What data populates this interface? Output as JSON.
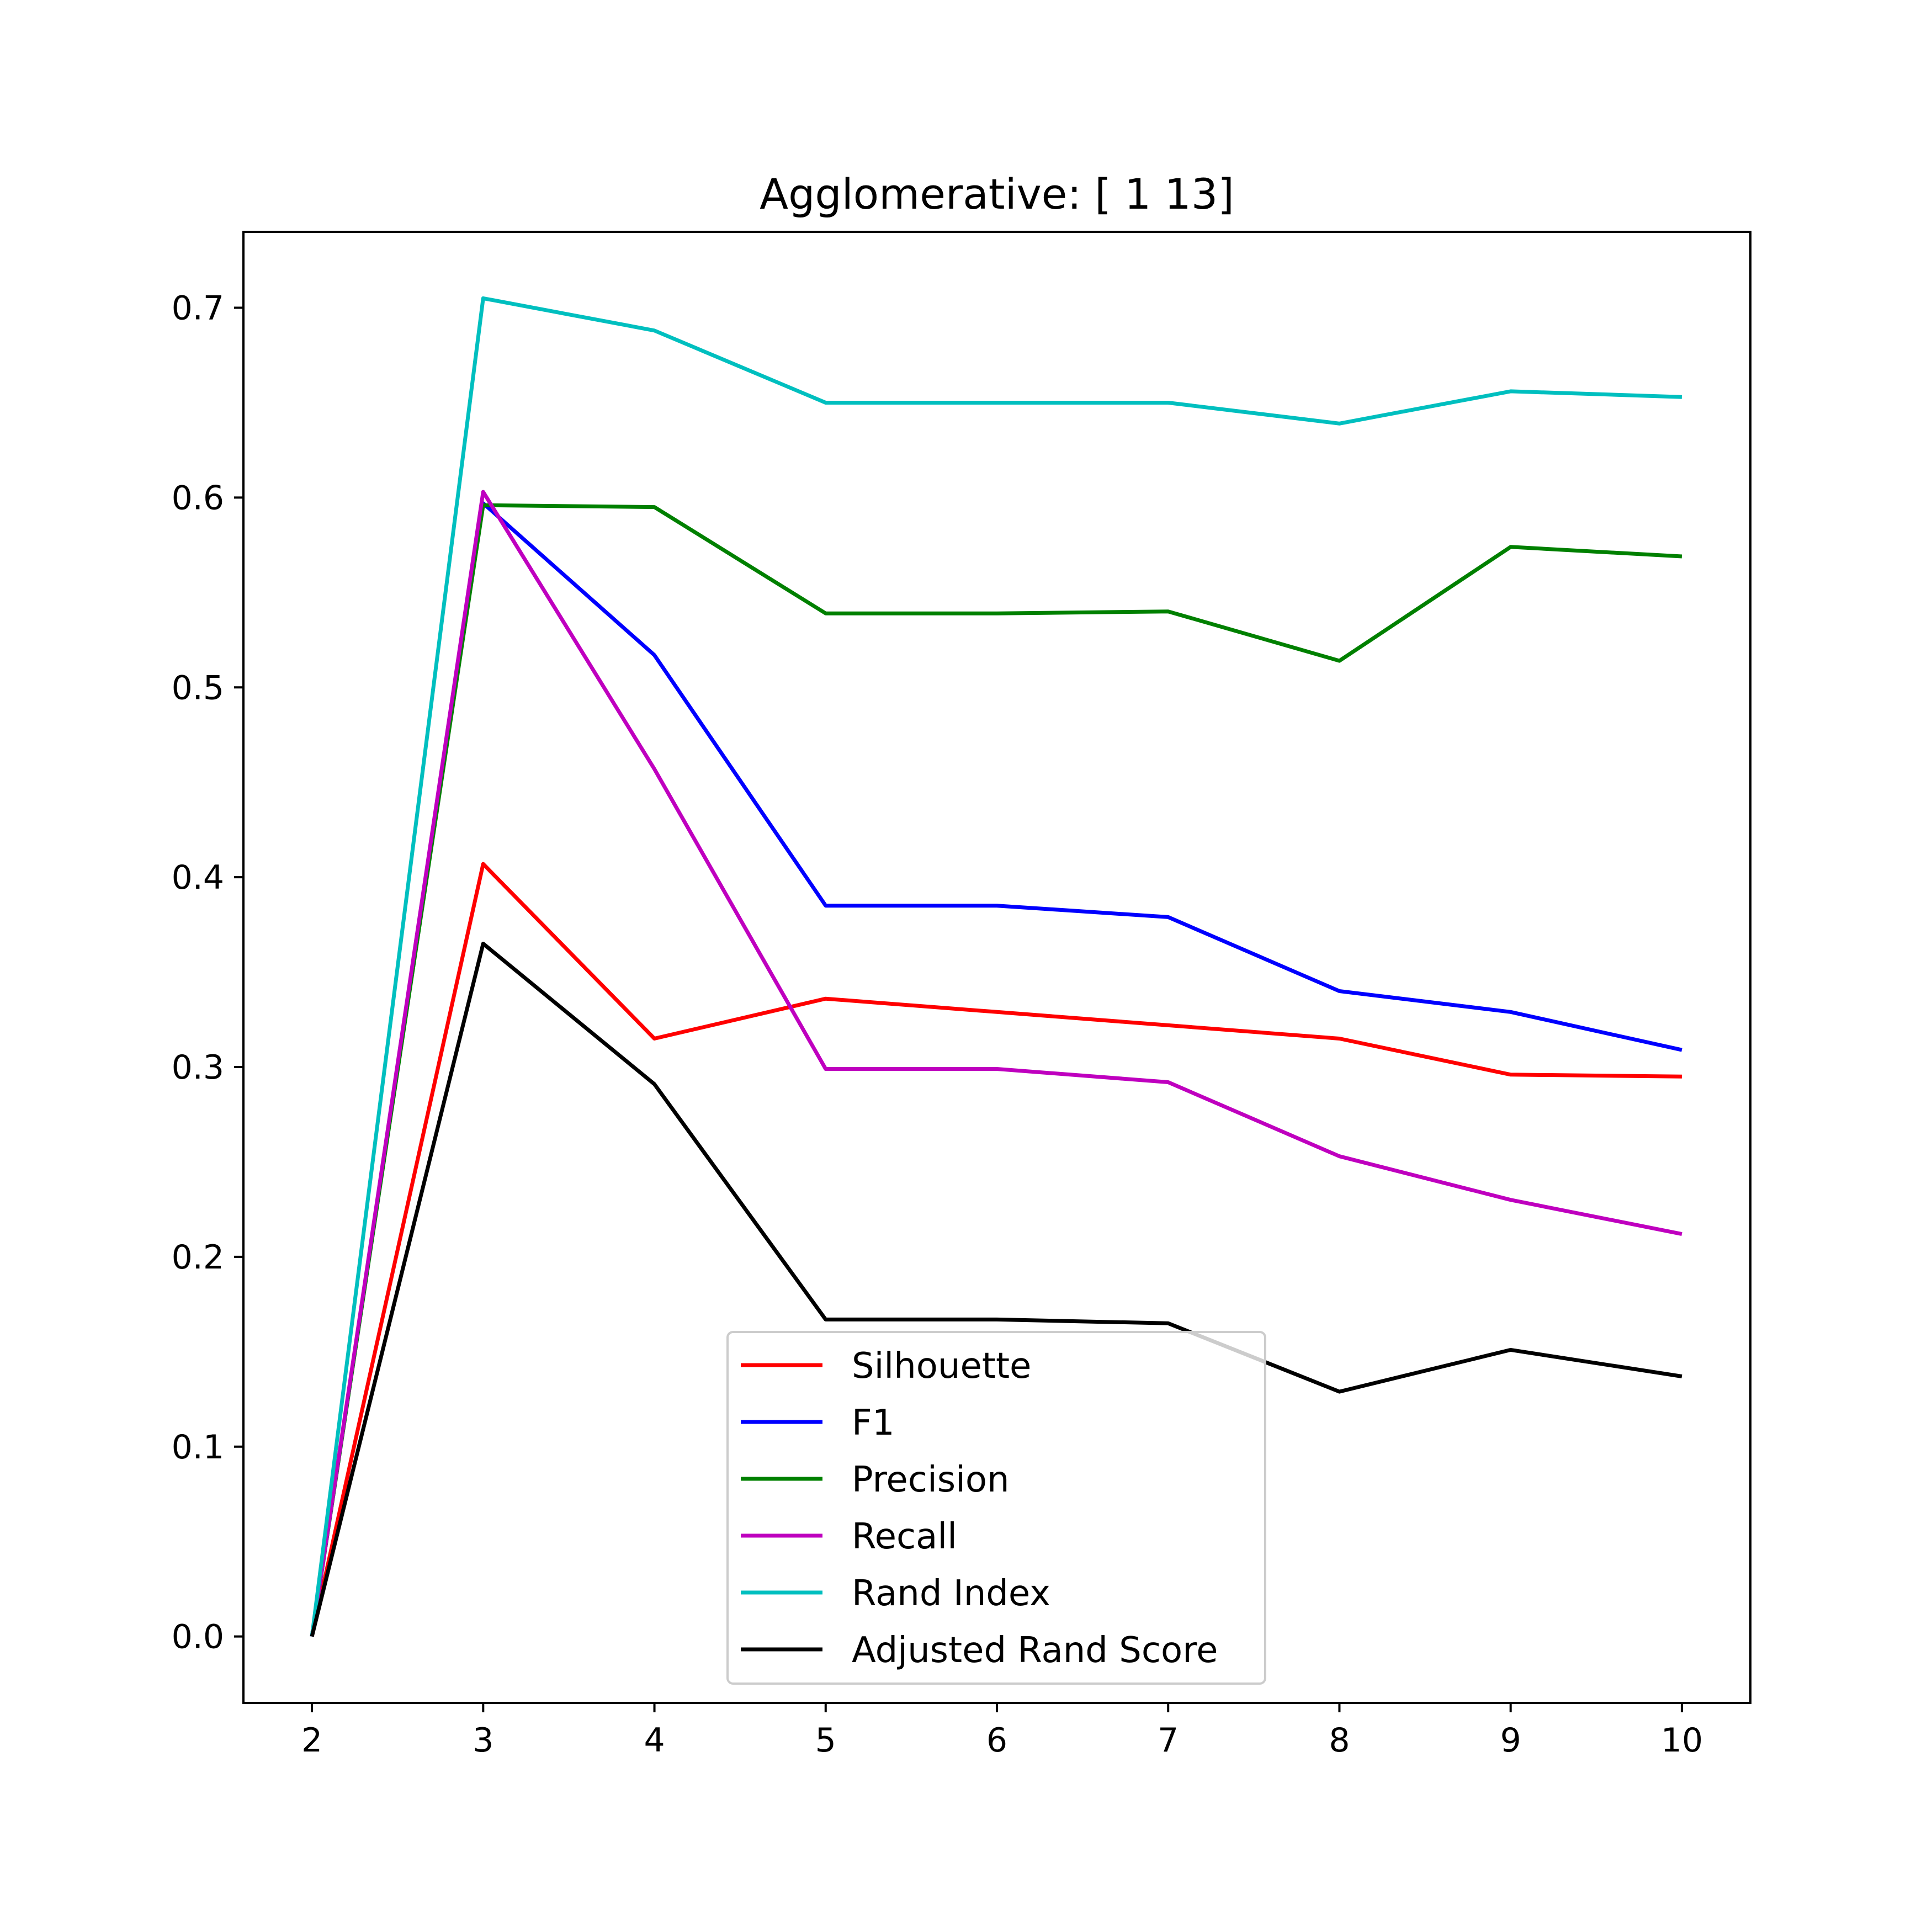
{
  "chart_data": {
    "type": "line",
    "title": "Agglomerative: [ 1 13]",
    "xlabel": "",
    "ylabel": "",
    "x": [
      2,
      3,
      4,
      5,
      6,
      7,
      8,
      9,
      10
    ],
    "xlim": [
      1.6,
      10.4
    ],
    "ylim": [
      -0.035,
      0.74
    ],
    "x_ticks": [
      "2",
      "3",
      "4",
      "5",
      "6",
      "7",
      "8",
      "9",
      "10"
    ],
    "y_ticks": [
      "0.0",
      "0.1",
      "0.2",
      "0.3",
      "0.4",
      "0.5",
      "0.6",
      "0.7"
    ],
    "grid": false,
    "legend_position": "lower-center",
    "series": [
      {
        "name": "Silhouette",
        "color": "#ff0000",
        "values": [
          0.0,
          0.407,
          0.315,
          0.336,
          0.329,
          0.322,
          0.315,
          0.296,
          0.295
        ]
      },
      {
        "name": "F1",
        "color": "#0000ff",
        "values": [
          0.0,
          0.597,
          0.517,
          0.385,
          0.385,
          0.379,
          0.34,
          0.329,
          0.309
        ]
      },
      {
        "name": "Precision",
        "color": "#008000",
        "values": [
          0.0,
          0.596,
          0.595,
          0.539,
          0.539,
          0.54,
          0.514,
          0.574,
          0.569
        ]
      },
      {
        "name": "Recall",
        "color": "#bf00bf",
        "values": [
          0.0,
          0.603,
          0.457,
          0.299,
          0.299,
          0.292,
          0.253,
          0.23,
          0.212
        ]
      },
      {
        "name": "Rand Index",
        "color": "#00bfbf",
        "values": [
          0.0,
          0.705,
          0.688,
          0.65,
          0.65,
          0.65,
          0.639,
          0.656,
          0.653
        ]
      },
      {
        "name": "Adjusted Rand Score",
        "color": "#000000",
        "values": [
          0.0,
          0.365,
          0.291,
          0.167,
          0.167,
          0.165,
          0.129,
          0.151,
          0.137
        ]
      }
    ]
  }
}
